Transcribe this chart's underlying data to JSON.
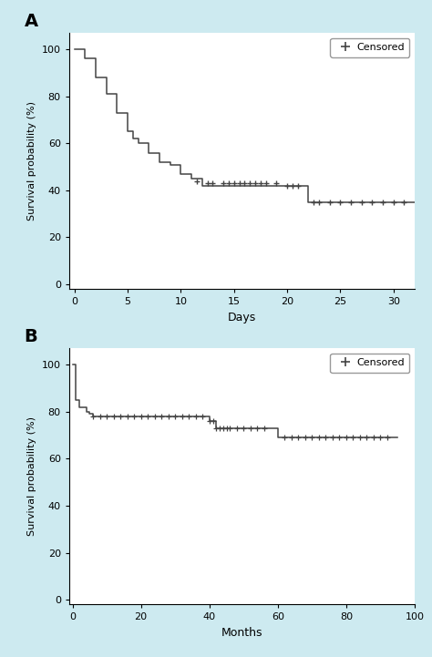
{
  "bg_color": "#cdeaf0",
  "plot_bg_color": "#ffffff",
  "line_color": "#444444",
  "panel_A": {
    "label": "A",
    "xlabel": "Days",
    "ylabel": "Survival probability (%)",
    "xlim": [
      -0.5,
      32
    ],
    "ylim": [
      -2,
      107
    ],
    "xticks": [
      0,
      5,
      10,
      15,
      20,
      25,
      30
    ],
    "yticks": [
      0,
      20,
      40,
      60,
      80,
      100
    ],
    "step_x": [
      0,
      1,
      2,
      3,
      4,
      5,
      5.5,
      6,
      7,
      8,
      9,
      10,
      11,
      12,
      22,
      32
    ],
    "step_y": [
      100,
      96,
      88,
      81,
      73,
      65,
      62,
      60,
      56,
      52,
      51,
      47,
      45,
      42,
      35,
      35
    ],
    "censored_x": [
      11.5,
      12.5,
      13,
      14,
      14.5,
      15,
      15.5,
      16,
      16.5,
      17,
      17.5,
      18,
      19,
      20,
      20.5,
      21,
      22.5,
      23,
      24,
      25,
      26,
      27,
      28,
      29,
      30,
      31
    ],
    "censored_y": [
      44,
      43,
      43,
      43,
      43,
      43,
      43,
      43,
      43,
      43,
      43,
      43,
      43,
      42,
      42,
      42,
      35,
      35,
      35,
      35,
      35,
      35,
      35,
      35,
      35,
      35
    ]
  },
  "panel_B": {
    "label": "B",
    "xlabel": "Months",
    "ylabel": "Survival probability (%)",
    "xlim": [
      -1,
      100
    ],
    "ylim": [
      -2,
      107
    ],
    "xticks": [
      0,
      20,
      40,
      60,
      80,
      100
    ],
    "yticks": [
      0,
      20,
      40,
      60,
      80,
      100
    ],
    "step_x": [
      0,
      1,
      2,
      4,
      5,
      6,
      40,
      42,
      57,
      60,
      95
    ],
    "step_y": [
      100,
      85,
      82,
      80,
      79,
      78,
      76,
      73,
      73,
      69,
      69
    ],
    "censored_x_1": [
      6,
      8,
      10,
      12,
      14,
      16,
      18,
      20,
      22,
      24,
      26,
      28,
      30,
      32,
      34,
      36,
      38,
      40,
      41,
      42,
      43,
      44,
      45,
      46,
      48,
      50,
      52,
      54,
      56
    ],
    "censored_y_1": [
      78,
      78,
      78,
      78,
      78,
      78,
      78,
      78,
      78,
      78,
      78,
      78,
      78,
      78,
      78,
      78,
      78,
      76,
      76,
      73,
      73,
      73,
      73,
      73,
      73,
      73,
      73,
      73,
      73
    ],
    "censored_x_2": [
      62,
      64,
      66,
      68,
      70,
      72,
      74,
      76,
      78,
      80,
      82,
      84,
      86,
      88,
      90,
      92
    ],
    "censored_y_2": [
      69,
      69,
      69,
      69,
      69,
      69,
      69,
      69,
      69,
      69,
      69,
      69,
      69,
      69,
      69,
      69
    ]
  }
}
